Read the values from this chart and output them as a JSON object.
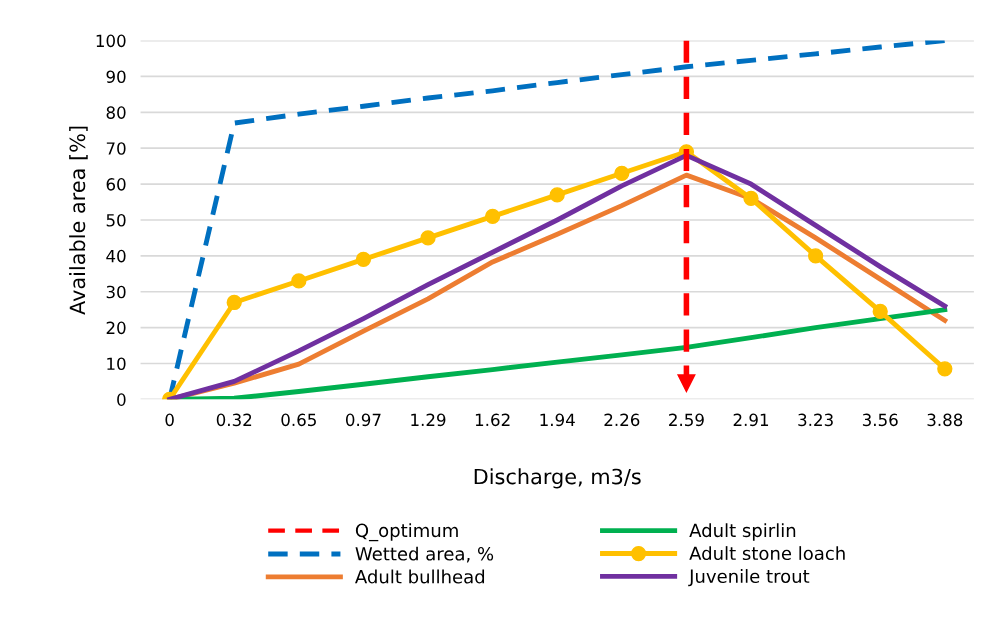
{
  "chart_data": {
    "type": "line",
    "xlabel": "Discharge, m3/s",
    "ylabel": "Available area [%]",
    "categories": [
      "0",
      "0.32",
      "0.65",
      "0.97",
      "1.29",
      "1.62",
      "1.94",
      "2.26",
      "2.59",
      "2.91",
      "3.23",
      "3.56",
      "3.88"
    ],
    "series": [
      {
        "name": "Wetted area, %",
        "color": "#0070c0",
        "line_style": "dashed",
        "marker": "none",
        "values": [
          0,
          77,
          79.5,
          81.7,
          84,
          86,
          88.3,
          90.5,
          92.7,
          94.5,
          96.3,
          98.2,
          100
        ]
      },
      {
        "name": "Adult bullhead",
        "color": "#ed7d31",
        "line_style": "solid",
        "marker": "none",
        "values": [
          0,
          4.5,
          9.8,
          19,
          28,
          38.3,
          46,
          54,
          62.5,
          56,
          45,
          33.5,
          22
        ]
      },
      {
        "name": "Adult spirlin",
        "color": "#00b050",
        "line_style": "solid",
        "marker": "none",
        "values": [
          0,
          0.3,
          2.2,
          4.2,
          6.3,
          8.3,
          10.4,
          12.4,
          14.5,
          17.2,
          20,
          22.5,
          25
        ]
      },
      {
        "name": "Adult stone loach",
        "color": "#ffc000",
        "line_style": "solid",
        "marker": "circle",
        "values": [
          0,
          27,
          33,
          39,
          45,
          51,
          57,
          63,
          69,
          56,
          40,
          24.5,
          8.5
        ]
      },
      {
        "name": "Juvenile trout",
        "color": "#7030a0",
        "line_style": "solid",
        "marker": "none",
        "values": [
          0,
          5,
          13.5,
          22.5,
          32,
          41,
          50,
          59.5,
          68,
          60,
          48.5,
          37,
          26
        ]
      }
    ],
    "ref_lines": [
      {
        "axis": "x",
        "value": "2.59",
        "label": "Q_optimum",
        "color": "#ff0000",
        "line_style": "dashed"
      }
    ],
    "ylim": [
      0,
      100
    ],
    "yticks": [
      0,
      10,
      20,
      30,
      40,
      50,
      60,
      70,
      80,
      90,
      100
    ],
    "grid": "y",
    "legend": "bottom"
  }
}
